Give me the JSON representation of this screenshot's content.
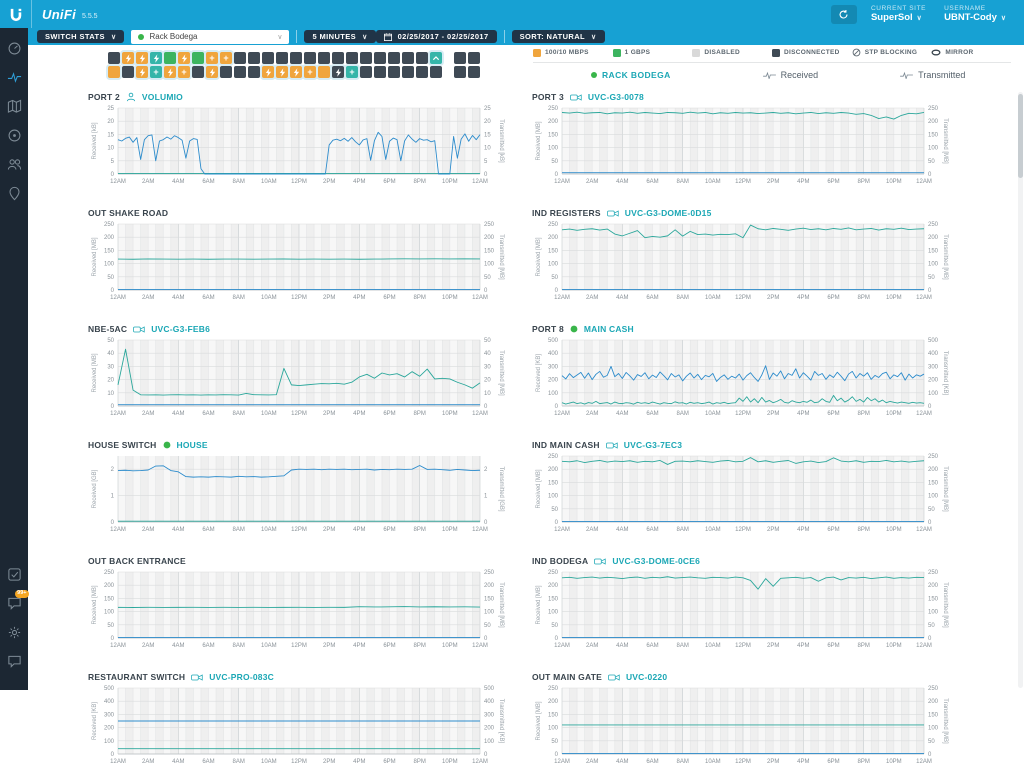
{
  "header": {
    "brand": "UniFi",
    "version": "5.5.5",
    "current_site_label": "CURRENT SITE",
    "current_site": "SuperSol",
    "username_label": "USERNAME",
    "username": "UBNT-Cody"
  },
  "toolbar": {
    "stats_type": "SWITCH STATS",
    "device_selector": "Rack Bodega",
    "interval": "5 MINUTES",
    "date_range": "02/25/2017 - 02/25/2017",
    "sort": "SORT: NATURAL"
  },
  "colors": {
    "accent": "#17a1d3",
    "teal_text": "#1ba7b5",
    "received": "#2d8ccc",
    "transmitted": "#2ba79b",
    "orange": "#f0a53d",
    "green": "#3cb45f",
    "teal_port": "#35b5a9",
    "dark_port": "#3f4a55",
    "disabled": "#d9d9d9",
    "online_dot": "#39b54a"
  },
  "port_grid": {
    "row1": [
      "dark",
      "orange-bolt",
      "orange-bolt",
      "teal-bolt",
      "green",
      "orange-bolt",
      "green",
      "orange-plus",
      "orange-plus",
      "dark",
      "dark",
      "dark",
      "dark",
      "dark",
      "dark",
      "dark",
      "dark",
      "dark",
      "dark",
      "dark",
      "dark",
      "dark",
      "dark",
      "teal-up"
    ],
    "row1_sfp": [
      "dark",
      "dark"
    ],
    "row2": [
      "orange",
      "dark",
      "orange-bolt",
      "teal-plus",
      "orange-bolt",
      "orange-plus",
      "dark",
      "orange-bolt",
      "dark",
      "dark",
      "dark",
      "orange-bolt",
      "orange-bolt",
      "orange-bolt",
      "orange-plus",
      "orange",
      "dark-bolt",
      "teal-plus",
      "dark",
      "dark",
      "dark",
      "dark",
      "dark",
      "dark"
    ],
    "row2_sfp": [
      "dark",
      "dark"
    ]
  },
  "port_legend": [
    {
      "swatch": "#f0a53d",
      "label": "100/10 Mbps"
    },
    {
      "swatch": "#3cb45f",
      "label": "1 Gbps"
    },
    {
      "swatch": "#d9d9d9",
      "label": "DISABLED"
    },
    {
      "swatch": "#3f4a55",
      "label": "DISCONNECTED"
    },
    {
      "icon": "stp",
      "label": "STP BLOCKING"
    },
    {
      "icon": "mirror",
      "label": "MIRROR"
    }
  ],
  "site_legend": {
    "site": "RACK BODEGA",
    "received": "Received",
    "transmitted": "Transmitted"
  },
  "sidebar": {
    "top": [
      {
        "name": "dashboard"
      },
      {
        "name": "statistics",
        "active": true
      },
      {
        "name": "map"
      },
      {
        "name": "devices"
      },
      {
        "name": "clients"
      },
      {
        "name": "insights"
      }
    ],
    "bottom": [
      {
        "name": "events"
      },
      {
        "name": "alerts",
        "badge": "99+"
      },
      {
        "name": "settings"
      },
      {
        "name": "chat"
      }
    ]
  },
  "chart_x_ticks": [
    "12AM",
    "2AM",
    "4AM",
    "6AM",
    "8AM",
    "10AM",
    "12PM",
    "2PM",
    "4PM",
    "6PM",
    "8PM",
    "10PM",
    "12AM"
  ],
  "panels": [
    {
      "title": "PORT 2",
      "icon": "user",
      "device": "VOLUMIO",
      "y_max": 25,
      "y_ticks": [
        0,
        5,
        10,
        15,
        20,
        25
      ],
      "ylabel_left": "Received [kB]",
      "ylabel_right": "Transmitted [kB]",
      "series": {
        "received": [
          13,
          12.5,
          13.5,
          14,
          12,
          13.8,
          5.5,
          13,
          14.5,
          14.8,
          5,
          12.5,
          13,
          14,
          13.2,
          14.5,
          13.8,
          12.8,
          6,
          12.5,
          13.4,
          13.1,
          2,
          0,
          0,
          0,
          0,
          0,
          0,
          0,
          0,
          0,
          0,
          0,
          0,
          0,
          0,
          0,
          0,
          0,
          0,
          0,
          0,
          0,
          0,
          0,
          0,
          0,
          0,
          0,
          0,
          0,
          0,
          0,
          0,
          0,
          11,
          12.8,
          13.2,
          12.6,
          13.5,
          12.4,
          13.8,
          12.2,
          11,
          12.9,
          13.4,
          5.2,
          12.6,
          15.8,
          14.2,
          5.5,
          12.4,
          13.6,
          13,
          5,
          12.5,
          14.8,
          13.2,
          12,
          13.4,
          12.8,
          13,
          12.2,
          12.6,
          0,
          0,
          0,
          0,
          14.2,
          6,
          13.2,
          15.2,
          12.4,
          14.6,
          13,
          14.9
        ],
        "transmitted": [
          0.2,
          0.2
        ]
      }
    },
    {
      "title": "PORT 3",
      "icon": "camera",
      "device": "UVC-G3-0078",
      "y_max": 250,
      "y_ticks": [
        0,
        50,
        100,
        150,
        200,
        250
      ],
      "ylabel_left": "Received [MB]",
      "ylabel_right": "Transmitted [MB]",
      "series": {
        "received": [
          5,
          5
        ],
        "transmitted": [
          233,
          231,
          234,
          230,
          232,
          233,
          228,
          232,
          231,
          234,
          230,
          233,
          231,
          229,
          233,
          232,
          230,
          234,
          231,
          233,
          228,
          232,
          230,
          233,
          231,
          232,
          229,
          231,
          233,
          230,
          232,
          228,
          231,
          233,
          229,
          232,
          230,
          233,
          231,
          226,
          229,
          222,
          210,
          216,
          208,
          222,
          230,
          228,
          233
        ]
      }
    },
    {
      "title": "OUT SHAKE ROAD",
      "icon": null,
      "device": null,
      "y_max": 250,
      "y_ticks": [
        0,
        50,
        100,
        150,
        200,
        250
      ],
      "ylabel_left": "Received [MB]",
      "ylabel_right": "Transmitted [MB]",
      "series": {
        "received": [
          2,
          2
        ],
        "transmitted": [
          117,
          116.5,
          117.5,
          117,
          116.8,
          117.2,
          116.5,
          117,
          117.3,
          116.7,
          117,
          117.4,
          116.6,
          117.1,
          116.9,
          117.2,
          116.5,
          117,
          117.5,
          118,
          117.8,
          118.2,
          117.6,
          117.9,
          117.5
        ]
      }
    },
    {
      "title": "IND REGISTERS",
      "icon": "camera",
      "device": "UVC-G3-DOME-0D15",
      "y_max": 250,
      "y_ticks": [
        0,
        50,
        100,
        150,
        200,
        250
      ],
      "ylabel_left": "Received [MB]",
      "ylabel_right": "Transmitted [MB]",
      "series": {
        "received": [
          2,
          2
        ],
        "transmitted": [
          228,
          231,
          226,
          230,
          232,
          227,
          231,
          212,
          205,
          215,
          225,
          198,
          203,
          200,
          205,
          228,
          204,
          222,
          210,
          212,
          208,
          211,
          210,
          213,
          198,
          246,
          232,
          228,
          233,
          230,
          226,
          231,
          234,
          229,
          232,
          228,
          233,
          230,
          235,
          228,
          231,
          233,
          227,
          232,
          230,
          234,
          229,
          231,
          232
        ]
      }
    },
    {
      "title": "NBE-5AC",
      "icon": "camera",
      "device": "UVC-G3-FEB6",
      "y_max": 50,
      "y_ticks": [
        0,
        10,
        20,
        30,
        40,
        50
      ],
      "ylabel_left": "Received [MB]",
      "ylabel_right": "Transmitted [MB]",
      "series": {
        "received": [
          1,
          1
        ],
        "transmitted": [
          16,
          43,
          12,
          8.5,
          8.4,
          8.5,
          8.3,
          8.5,
          8.6,
          8.4,
          8.5,
          8.3,
          8.5,
          8.4,
          8.6,
          8.5,
          8.3,
          9.5,
          8.6,
          8.5,
          8.4,
          8.6,
          28.5,
          16,
          15.5,
          16,
          16.5,
          17,
          16.8,
          17.2,
          16.5,
          18,
          22,
          24,
          21,
          25,
          23.5,
          24.5,
          22,
          26,
          22.5,
          28,
          20.5,
          21,
          20.5,
          18,
          16,
          13.5,
          17.5
        ]
      }
    },
    {
      "title": "PORT 8",
      "icon": "green-dot",
      "device": "MAIN CASH",
      "y_max": 500,
      "y_ticks": [
        0,
        100,
        200,
        300,
        400,
        500
      ],
      "ylabel_left": "Received [KB]",
      "ylabel_right": "Transmitted [KB]",
      "series": {
        "received": [
          230,
          205,
          245,
          215,
          235,
          255,
          210,
          250,
          200,
          240,
          262,
          218,
          232,
          300,
          222,
          246,
          208,
          254,
          228,
          196,
          238,
          224,
          252,
          206,
          234,
          216,
          258,
          230,
          198,
          246,
          220,
          236,
          190,
          226,
          250,
          212,
          240,
          200,
          232,
          221,
          247,
          186,
          216,
          236,
          202,
          226,
          212,
          242,
          196,
          230,
          252,
          216,
          186,
          236,
          305,
          202,
          250,
          226,
          266,
          206,
          246,
          232,
          282,
          212,
          252,
          226,
          196,
          262,
          232,
          246,
          202,
          236,
          216,
          256,
          226,
          192,
          242,
          262,
          212,
          246,
          226,
          252,
          202,
          232,
          216,
          246,
          256,
          206,
          236,
          222,
          252,
          196,
          242,
          212,
          236,
          226,
          242
        ],
        "transmitted": [
          25,
          15,
          22,
          30,
          18,
          24,
          15,
          26,
          20,
          35,
          18,
          22,
          26,
          15,
          30,
          20,
          18,
          25,
          22,
          14,
          28,
          20,
          25,
          18,
          30,
          22,
          15,
          25,
          20,
          18,
          32,
          22,
          25,
          15,
          28,
          20,
          25,
          18,
          22,
          30,
          15,
          25,
          20,
          28,
          18,
          22,
          25,
          60,
          35,
          70,
          30,
          55,
          25,
          65,
          30,
          42,
          25,
          35,
          50,
          28,
          22,
          40,
          30,
          25,
          35,
          28,
          45,
          25,
          30,
          55,
          35,
          28,
          80,
          40,
          60,
          30,
          45,
          70,
          35,
          50,
          30,
          65,
          40,
          55,
          30,
          45,
          25,
          35,
          28,
          22,
          30,
          25,
          20,
          28,
          22,
          25,
          20
        ]
      }
    },
    {
      "title": "HOUSE SWITCH",
      "icon": "green-dot",
      "device": "HOUSE",
      "y_max": 2.5,
      "y_ticks": [
        0,
        1,
        2
      ],
      "ylabel_left": "Received [GB]",
      "ylabel_right": "Transmitted [GB]",
      "series": {
        "received": [
          1.95,
          1.96,
          1.94,
          1.95,
          1.97,
          2.12,
          2.13,
          1.95,
          1.9,
          1.72,
          1.7,
          1.71,
          1.7,
          1.72,
          1.71,
          1.7,
          1.73,
          1.71,
          1.72,
          1.7,
          1.71,
          1.73,
          1.75,
          1.97,
          2,
          1.99,
          2,
          1.98,
          2,
          1.99,
          2,
          1.98,
          1.99,
          2,
          1.97,
          1.99,
          1.98,
          2,
          1.99,
          2,
          2.14,
          1.99,
          2,
          1.98,
          1.96,
          1.99,
          1.97,
          1.95,
          1.96
        ],
        "transmitted": [
          0.03,
          0.03
        ]
      }
    },
    {
      "title": "IND MAIN CASH",
      "icon": "camera",
      "device": "UVC-G3-7EC3",
      "y_max": 250,
      "y_ticks": [
        0,
        50,
        100,
        150,
        200,
        250
      ],
      "ylabel_left": "Received [MB]",
      "ylabel_right": "Transmitted [MB]",
      "series": {
        "received": [
          2,
          2
        ],
        "transmitted": [
          230,
          228,
          232,
          225,
          230,
          233,
          227,
          231,
          229,
          232,
          226,
          230,
          228,
          233,
          218,
          230,
          231,
          228,
          232,
          229,
          226,
          231,
          233,
          228,
          230,
          244,
          228,
          232,
          226,
          230,
          233,
          222,
          228,
          231,
          225,
          229,
          243,
          231,
          228,
          232,
          226,
          230,
          229,
          233,
          228,
          231,
          227,
          230,
          232
        ]
      }
    },
    {
      "title": "OUT BACK ENTRANCE",
      "icon": null,
      "device": null,
      "y_max": 250,
      "y_ticks": [
        0,
        50,
        100,
        150,
        200,
        250
      ],
      "ylabel_left": "Received [MB]",
      "ylabel_right": "Transmitted [MB]",
      "series": {
        "received": [
          2,
          2
        ],
        "transmitted": [
          116,
          115.5,
          116.2,
          115.8,
          116,
          116.3,
          115.7,
          116.1,
          115.9,
          116.2,
          115.8,
          116,
          116.4,
          115.9,
          116.2,
          116,
          118.5,
          117.5,
          118,
          119,
          117.8,
          118.4,
          117.6,
          118,
          117.2
        ]
      }
    },
    {
      "title": "IND BODEGA",
      "icon": "camera",
      "device": "UVC-G3-DOME-0CE6",
      "y_max": 250,
      "y_ticks": [
        0,
        50,
        100,
        150,
        200,
        250
      ],
      "ylabel_left": "Received [MB]",
      "ylabel_right": "Transmitted [MB]",
      "series": {
        "received": [
          2,
          2
        ],
        "transmitted": [
          228,
          230,
          226,
          229,
          231,
          227,
          230,
          228,
          225,
          229,
          231,
          226,
          230,
          228,
          232,
          227,
          229,
          231,
          228,
          226,
          230,
          229,
          227,
          231,
          228,
          218,
          185,
          225,
          196,
          226,
          228,
          230,
          226,
          229,
          215,
          228,
          231,
          220,
          229,
          227,
          230,
          225,
          228,
          231,
          226,
          229,
          227,
          230,
          229
        ]
      }
    },
    {
      "title": "RESTAURANT SWITCH",
      "icon": "camera",
      "device": "UVC-PRO-083C",
      "y_max": 500,
      "y_ticks": [
        0,
        100,
        200,
        300,
        400,
        500
      ],
      "ylabel_left": "Received [KB]",
      "ylabel_right": "Transmitted [KB]",
      "series": {
        "received": [
          250,
          250
        ],
        "transmitted": [
          40,
          40
        ]
      }
    },
    {
      "title": "OUT MAIN GATE",
      "icon": "camera",
      "device": "UVC-0220",
      "y_max": 250,
      "y_ticks": [
        0,
        50,
        100,
        150,
        200,
        250
      ],
      "ylabel_left": "Received [MB]",
      "ylabel_right": "Transmitted [MB]",
      "series": {
        "received": [
          2,
          2
        ],
        "transmitted": [
          110,
          110
        ]
      }
    }
  ]
}
